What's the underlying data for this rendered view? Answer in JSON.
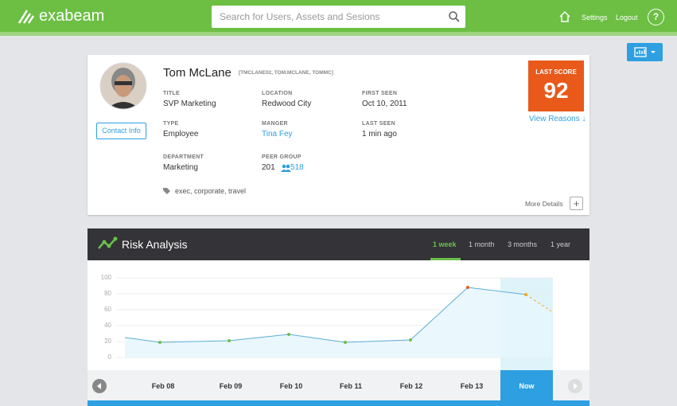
{
  "header": {
    "logo": "exabeam",
    "search_placeholder": "Search for Users, Assets and Sesions",
    "links": [
      "Settings",
      "Logout"
    ],
    "help": "?"
  },
  "profile": {
    "name": "Tom McLane",
    "aliases": "[TMCLANE02, TOM.MCLANE, TOMMC]",
    "contact_button": "Contact Info",
    "fields": [
      {
        "label": "TITLE",
        "value": "SVP Marketing"
      },
      {
        "label": "LOCATION",
        "value": "Redwood City"
      },
      {
        "label": "FIRST SEEN",
        "value": "Oct 10, 2011"
      },
      {
        "label": "TYPE",
        "value": "Employee"
      },
      {
        "label": "MANGER",
        "value": "Tina Fey"
      },
      {
        "label": "LAST SEEN",
        "value": "1 min ago"
      },
      {
        "label": "DEPARTMENT",
        "value": "Marketing"
      },
      {
        "label": "PEER GROUP",
        "value": "201",
        "extra": "518"
      }
    ],
    "tags": "exec, corporate, travel",
    "score_label": "LAST SCORE",
    "score": "92",
    "view_reasons": "View Reasons ↓",
    "more_details": "More Details"
  },
  "risk": {
    "title": "Risk Analysis",
    "tabs": [
      "1 week",
      "1 month",
      "3 months",
      "1 year"
    ],
    "active_tab": 0,
    "timeline": [
      "Feb 08",
      "Feb 09",
      "Feb 10",
      "Feb 11",
      "Feb 12",
      "Feb 13",
      "Now"
    ],
    "chart": {
      "type": "line",
      "values": [
        25,
        19,
        21,
        29,
        19,
        22,
        88,
        79,
        58
      ],
      "marker_colors": [
        null,
        "#6cc04a",
        "#6cc04a",
        "#6cc04a",
        "#6cc04a",
        "#6cc04a",
        "#e8591a",
        "#f5a623",
        null
      ],
      "color": "#5aaed8",
      "ylim": [
        0,
        100
      ],
      "yticks": [
        0,
        20,
        40,
        60,
        80,
        100
      ],
      "grid": true
    }
  }
}
